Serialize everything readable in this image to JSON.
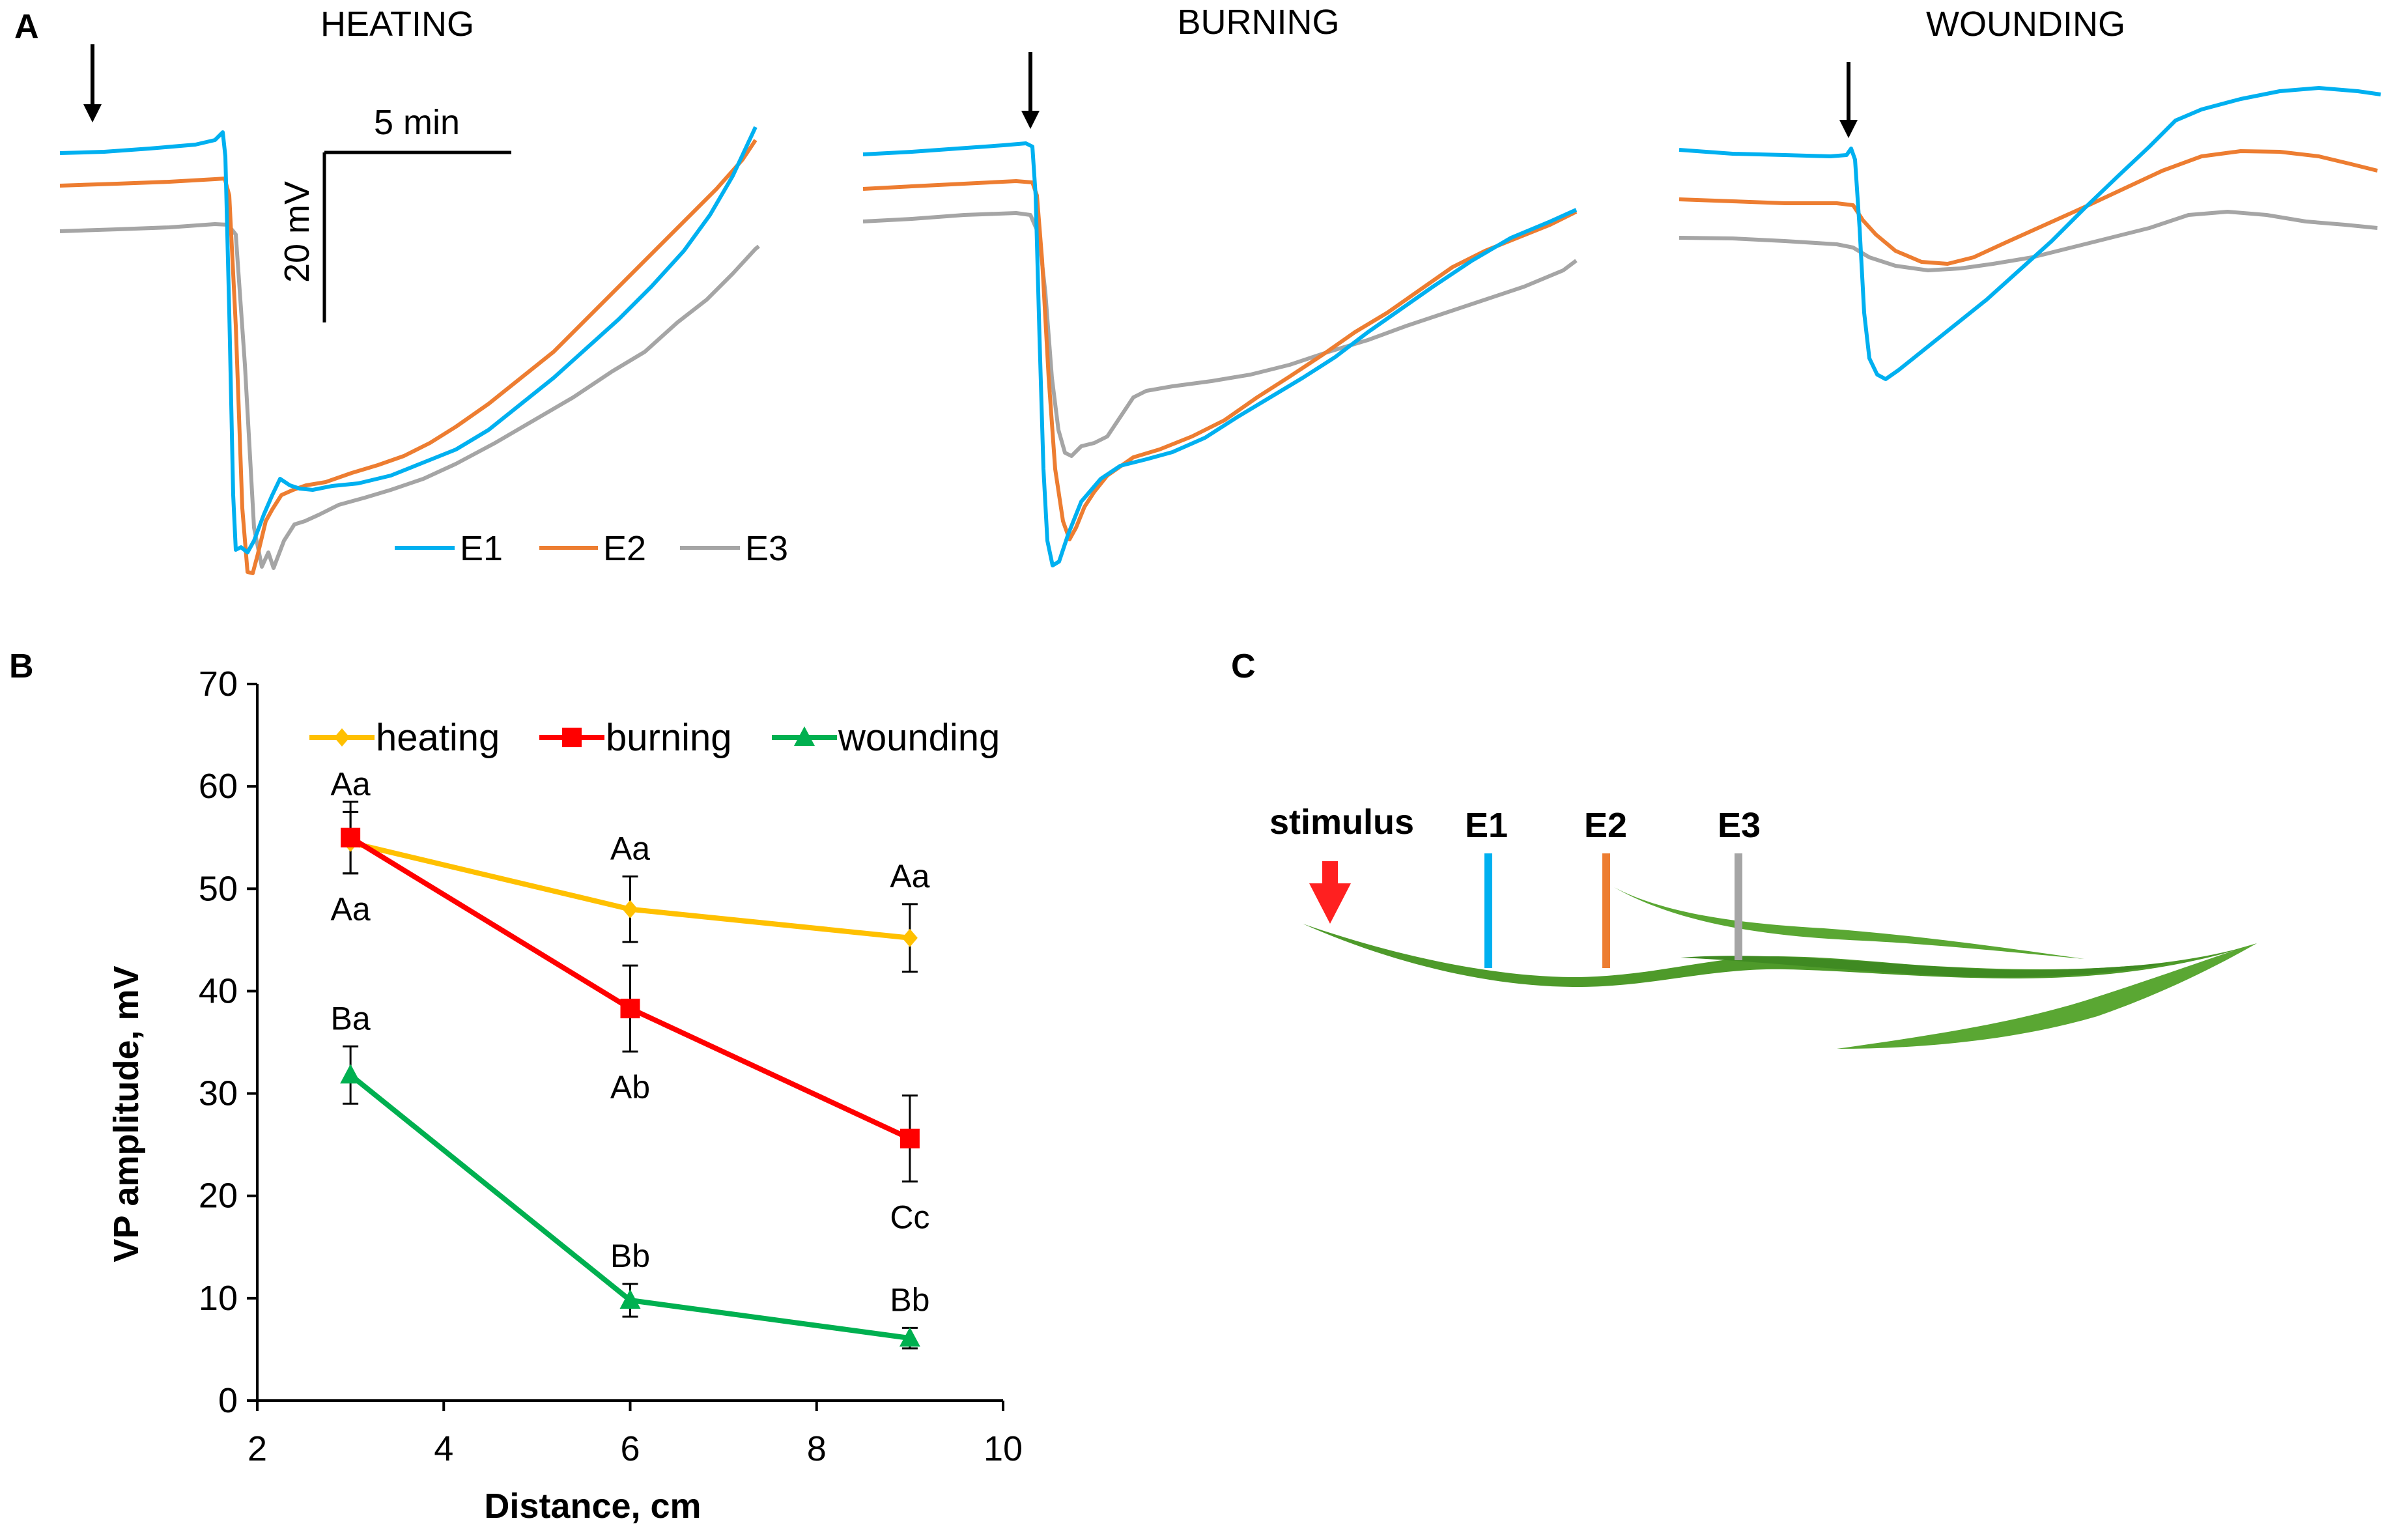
{
  "colors": {
    "E1": "#00b0f0",
    "E2": "#ed7d31",
    "E3": "#a5a5a5",
    "heating": "#ffc000",
    "burning": "#ff0000",
    "wounding": "#00b050",
    "leaf": "#4e9a2a",
    "stimulus": "#ff2020"
  },
  "panels": {
    "a": {
      "label": "A"
    },
    "b": {
      "label": "B"
    },
    "c": {
      "label": "C"
    }
  },
  "panelA": {
    "titles": [
      "HEATING",
      "BURNING",
      "WOUNDING"
    ],
    "scale_time": "5 min",
    "scale_voltage": "20 mV",
    "legend": [
      "E1",
      "E2",
      "E3"
    ]
  },
  "panelC": {
    "stimulus_label": "stimulus",
    "electrodes": [
      "E1",
      "E2",
      "E3"
    ]
  },
  "chart_data": {
    "type": "line",
    "title": "",
    "xlabel": "Distance, cm",
    "ylabel": "VP amplitude, mV",
    "xlim": [
      2,
      10
    ],
    "ylim": [
      0,
      70
    ],
    "xticks": [
      2,
      4,
      6,
      8,
      10
    ],
    "yticks": [
      0,
      10,
      20,
      30,
      40,
      50,
      60,
      70
    ],
    "grid": false,
    "legend_position": "top",
    "x": [
      3,
      6,
      9
    ],
    "series": [
      {
        "name": "heating",
        "marker": "diamond",
        "values": [
          54.5,
          48.0,
          45.2
        ],
        "errors": [
          3.0,
          3.2,
          3.3
        ],
        "letters": [
          "Aa",
          "Aa",
          "Aa"
        ]
      },
      {
        "name": "burning",
        "marker": "square",
        "values": [
          55.0,
          38.3,
          25.6
        ],
        "errors": [
          3.5,
          4.2,
          4.2
        ],
        "letters": [
          "Aa",
          "Ab",
          "Cc"
        ]
      },
      {
        "name": "wounding",
        "marker": "triangle",
        "values": [
          31.8,
          9.8,
          6.1
        ],
        "errors": [
          2.8,
          1.6,
          1.0
        ],
        "letters": [
          "Ba",
          "Bb",
          "Bb"
        ]
      }
    ]
  }
}
